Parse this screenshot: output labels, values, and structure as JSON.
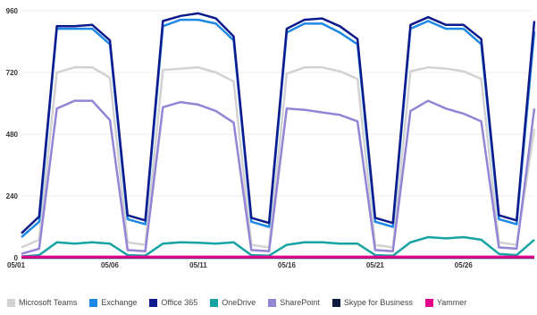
{
  "chart_data": {
    "type": "line",
    "title": "",
    "xlabel": "",
    "ylabel": "",
    "x_tick_labels": [
      "05/01",
      "05/06",
      "05/11",
      "05/16",
      "05/21",
      "05/26"
    ],
    "y_ticks": [
      0,
      240,
      480,
      720,
      960
    ],
    "ylim": [
      0,
      960
    ],
    "xlim": [
      0,
      29
    ],
    "grid": "horizontal",
    "legend_position": "bottom-left",
    "series": [
      {
        "name": "Microsoft Teams",
        "color": "#d2d2d2",
        "values": [
          40,
          70,
          720,
          740,
          740,
          700,
          60,
          50,
          730,
          735,
          740,
          720,
          685,
          50,
          40,
          715,
          740,
          740,
          725,
          695,
          50,
          40,
          725,
          740,
          735,
          725,
          695,
          60,
          50,
          500
        ]
      },
      {
        "name": "Exchange",
        "color": "#1e88e5",
        "values": [
          80,
          140,
          890,
          890,
          890,
          830,
          150,
          130,
          900,
          925,
          925,
          910,
          845,
          140,
          120,
          875,
          910,
          910,
          875,
          830,
          140,
          120,
          890,
          920,
          890,
          890,
          830,
          150,
          130,
          880
        ]
      },
      {
        "name": "Office 365",
        "color": "#0d1a8c",
        "values": [
          95,
          160,
          900,
          900,
          905,
          845,
          165,
          145,
          920,
          940,
          950,
          930,
          860,
          155,
          135,
          890,
          925,
          930,
          900,
          850,
          155,
          135,
          905,
          935,
          905,
          905,
          850,
          165,
          145,
          920
        ]
      },
      {
        "name": "OneDrive",
        "color": "#18a3a3",
        "values": [
          5,
          10,
          60,
          55,
          60,
          55,
          10,
          8,
          55,
          60,
          58,
          55,
          60,
          10,
          8,
          50,
          60,
          60,
          55,
          55,
          10,
          8,
          60,
          80,
          75,
          80,
          70,
          15,
          10,
          70
        ]
      },
      {
        "name": "SharePoint",
        "color": "#9484d6",
        "values": [
          15,
          35,
          580,
          610,
          610,
          535,
          30,
          25,
          585,
          605,
          595,
          570,
          525,
          30,
          25,
          580,
          575,
          565,
          555,
          530,
          30,
          25,
          570,
          610,
          580,
          560,
          530,
          40,
          35,
          580
        ]
      },
      {
        "name": "Skype for Business",
        "color": "#0f1b3d",
        "values": [
          0,
          0,
          0,
          0,
          0,
          0,
          0,
          0,
          0,
          0,
          0,
          0,
          0,
          0,
          0,
          0,
          0,
          0,
          0,
          0,
          0,
          0,
          0,
          0,
          0,
          0,
          0,
          0,
          0,
          0
        ]
      },
      {
        "name": "Yammer",
        "color": "#e3008c",
        "values": [
          3,
          3,
          3,
          3,
          3,
          3,
          3,
          3,
          3,
          3,
          3,
          3,
          3,
          3,
          3,
          3,
          3,
          3,
          3,
          3,
          3,
          3,
          3,
          3,
          3,
          3,
          3,
          3,
          3,
          3
        ]
      }
    ]
  }
}
